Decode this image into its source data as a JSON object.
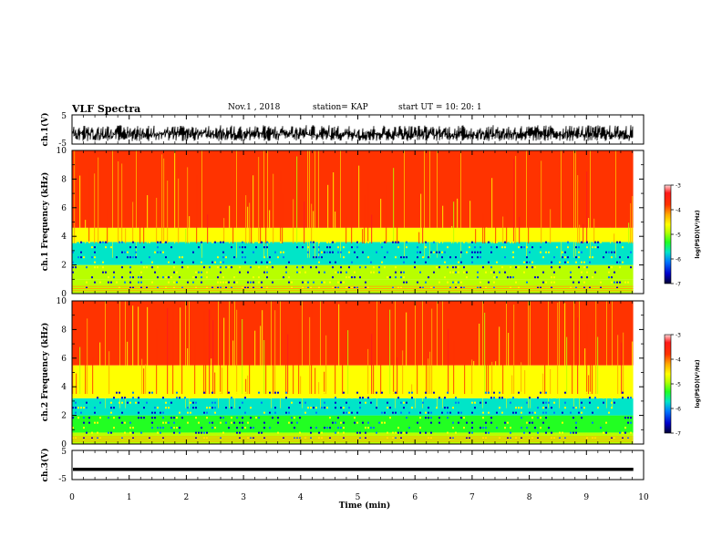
{
  "header": {
    "title": "VLF Spectra",
    "date": "Nov.1 , 2018",
    "station": "station= KAP",
    "start_ut": "start UT = 10: 20: 1"
  },
  "colors": {
    "spectrum": [
      "#000033",
      "#0000cc",
      "#0077ff",
      "#00e5c8",
      "#22ff22",
      "#b8ff00",
      "#ffff00",
      "#ffaa00",
      "#ff3300",
      "#ff1a1a",
      "#ffd6d6"
    ],
    "background": "#ffffff",
    "frame": "#000000"
  },
  "chart_data": [
    {
      "type": "line",
      "title": "",
      "ylabel": "ch.1(V)",
      "xlabel": "",
      "ylim": [
        -5,
        5
      ],
      "yticks": [
        "5",
        "-5"
      ],
      "x_range_min": [
        0,
        9.82
      ],
      "series": [
        {
          "description": "noisy waveform oscillating roughly between -4 and 1.5 V",
          "approx_min": -4,
          "approx_max": 1.5
        }
      ]
    },
    {
      "type": "heatmap",
      "ylabel": "ch.1 Frequency (kHz)",
      "ylim": [
        0,
        10
      ],
      "yticks": [
        "0",
        "2",
        "4",
        "6",
        "8",
        "10"
      ],
      "x_range_min": [
        0,
        9.82
      ],
      "colorbar": {
        "label": "log(PSD)(V²/Hz)",
        "range": [
          -7,
          -3
        ],
        "ticks": [
          "-3",
          "-4",
          "-5",
          "-6",
          "-7"
        ]
      },
      "bands": [
        {
          "from_khz": 0,
          "to_khz": 1.0,
          "log_psd": -5
        },
        {
          "from_khz": 1.0,
          "to_khz": 2.0,
          "log_psd": -5.2
        },
        {
          "from_khz": 2.0,
          "to_khz": 3.6,
          "log_psd": -5.8
        },
        {
          "from_khz": 3.6,
          "to_khz": 4.6,
          "log_psd": -4.6
        },
        {
          "from_khz": 4.6,
          "to_khz": 10,
          "log_psd": -3.7
        }
      ]
    },
    {
      "type": "heatmap",
      "ylabel": "ch.2 Frequency (kHz)",
      "ylim": [
        0,
        10
      ],
      "yticks": [
        "0",
        "2",
        "4",
        "6",
        "8",
        "10"
      ],
      "x_range_min": [
        0,
        9.82
      ],
      "colorbar": {
        "label": "log(PSD)(V²/Hz)",
        "range": [
          -7,
          -3
        ],
        "ticks": [
          "-3",
          "-4",
          "-5",
          "-6",
          "-7"
        ]
      },
      "bands": [
        {
          "from_khz": 0,
          "to_khz": 0.8,
          "log_psd": -5
        },
        {
          "from_khz": 0.8,
          "to_khz": 2.0,
          "log_psd": -5.3
        },
        {
          "from_khz": 2.0,
          "to_khz": 3.2,
          "log_psd": -6.0
        },
        {
          "from_khz": 3.2,
          "to_khz": 5.5,
          "log_psd": -4.7
        },
        {
          "from_khz": 5.5,
          "to_khz": 10,
          "log_psd": -3.8
        }
      ]
    },
    {
      "type": "line",
      "ylabel": "ch.3(V)",
      "xlabel": "Time (min)",
      "ylim": [
        -5,
        5
      ],
      "yticks": [
        "5",
        "-5"
      ],
      "xlim": [
        0,
        10
      ],
      "xticks": [
        "0",
        "1",
        "2",
        "3",
        "4",
        "5",
        "6",
        "7",
        "8",
        "9",
        "10"
      ],
      "x_range_min": [
        0,
        9.82
      ],
      "series": [
        {
          "description": "nearly constant signal",
          "approx_value": -1.5
        }
      ]
    }
  ]
}
